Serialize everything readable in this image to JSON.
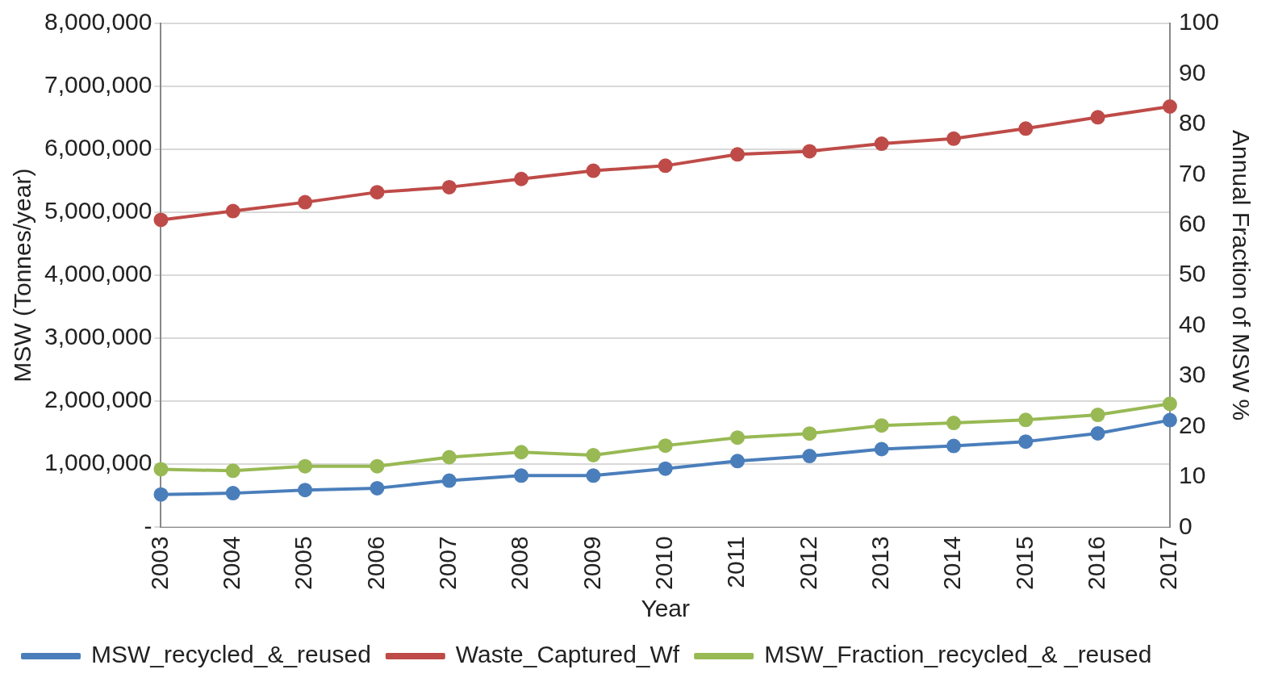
{
  "chart_data": {
    "type": "line",
    "xlabel": "Year",
    "ylabel": "MSW (Tonnes/year)",
    "y2label": "Annual Fraction of MSW %",
    "categories": [
      "2003",
      "2004",
      "2005",
      "2006",
      "2007",
      "2008",
      "2009",
      "2010",
      "2011",
      "2012",
      "2013",
      "2014",
      "2015",
      "2016",
      "2017"
    ],
    "series": [
      {
        "name": "MSW_recycled_&_reused",
        "color": "#4a7ebb",
        "values": [
          520000,
          540000,
          590000,
          620000,
          740000,
          820000,
          820000,
          930000,
          1050000,
          1130000,
          1240000,
          1290000,
          1360000,
          1490000,
          1700000
        ]
      },
      {
        "name": "Waste_Captured_Wf",
        "color": "#be4b48",
        "values": [
          4880000,
          5020000,
          5160000,
          5320000,
          5400000,
          5530000,
          5660000,
          5740000,
          5920000,
          5970000,
          6090000,
          6170000,
          6330000,
          6510000,
          6680000
        ]
      },
      {
        "name": "MSW_Fraction_recycled_& _reused",
        "color": "#98b954",
        "axis": "y2",
        "values": [
          11.5,
          11.2,
          12.1,
          12.1,
          13.9,
          14.9,
          14.3,
          16.2,
          17.8,
          18.6,
          20.2,
          20.7,
          21.3,
          22.3,
          24.5
        ]
      }
    ],
    "ylim": [
      0,
      8000000
    ],
    "yticks": [
      {
        "value": 0,
        "label": "-"
      },
      {
        "value": 1000000,
        "label": "1,000,000"
      },
      {
        "value": 2000000,
        "label": "2,000,000"
      },
      {
        "value": 3000000,
        "label": "3,000,000"
      },
      {
        "value": 4000000,
        "label": "4,000,000"
      },
      {
        "value": 5000000,
        "label": "5,000,000"
      },
      {
        "value": 6000000,
        "label": "6,000,000"
      },
      {
        "value": 7000000,
        "label": "7,000,000"
      },
      {
        "value": 8000000,
        "label": "8,000,000"
      }
    ],
    "y2lim": [
      0,
      100
    ],
    "y2ticks": [
      0,
      10,
      20,
      30,
      40,
      50,
      60,
      70,
      80,
      90,
      100
    ],
    "grid": "y",
    "legend": "bottom",
    "marker": "circle",
    "line_style": "solid"
  }
}
